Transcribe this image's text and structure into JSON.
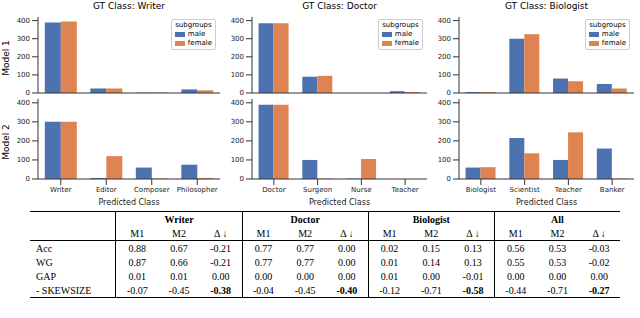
{
  "chart_data": [
    {
      "type": "bar",
      "title": "GT Class: Writer",
      "ylabel": "Model 1",
      "categories": [
        "Writer",
        "Editor",
        "Composer",
        "Philosopher"
      ],
      "series": [
        {
          "name": "male",
          "color": "#4c72b0",
          "values": [
            390,
            25,
            2,
            20
          ]
        },
        {
          "name": "female",
          "color": "#dd8452",
          "values": [
            395,
            25,
            2,
            15
          ]
        }
      ],
      "ylim": [
        0,
        420
      ],
      "yticks": [
        0,
        100,
        200,
        300,
        400
      ],
      "legend": "upper right",
      "legend_title": "subgroups",
      "tick_labels": "y"
    },
    {
      "type": "bar",
      "title": "GT Class: Doctor",
      "categories": [
        "Doctor",
        "Surgeon",
        "Nurse",
        "Teacher"
      ],
      "series": [
        {
          "name": "male",
          "color": "#4c72b0",
          "values": [
            385,
            90,
            0,
            10
          ]
        },
        {
          "name": "female",
          "color": "#dd8452",
          "values": [
            385,
            95,
            0,
            5
          ]
        }
      ],
      "ylim": [
        0,
        420
      ],
      "yticks": [
        0,
        100,
        200,
        300,
        400
      ],
      "legend": "upper right",
      "legend_title": "subgroups",
      "tick_labels": "y"
    },
    {
      "type": "bar",
      "title": "GT Class: Biologist",
      "categories": [
        "Biologist",
        "Scientist",
        "Teacher",
        "Banker"
      ],
      "series": [
        {
          "name": "male",
          "color": "#4c72b0",
          "values": [
            5,
            300,
            80,
            50
          ]
        },
        {
          "name": "female",
          "color": "#dd8452",
          "values": [
            5,
            325,
            65,
            25
          ]
        }
      ],
      "ylim": [
        0,
        420
      ],
      "yticks": [
        0,
        100,
        200,
        300,
        400
      ],
      "legend": "upper right",
      "legend_title": "subgroups",
      "tick_labels": "y"
    },
    {
      "type": "bar",
      "ylabel": "Model 2",
      "xlabel": "Predicted Class",
      "categories": [
        "Writer",
        "Editor",
        "Composer",
        "Philosopher"
      ],
      "series": [
        {
          "name": "male",
          "color": "#4c72b0",
          "values": [
            300,
            5,
            60,
            75
          ]
        },
        {
          "name": "female",
          "color": "#dd8452",
          "values": [
            300,
            120,
            3,
            5
          ]
        }
      ],
      "ylim": [
        0,
        420
      ],
      "yticks": [
        0,
        100,
        200,
        300,
        400
      ]
    },
    {
      "type": "bar",
      "xlabel": "Predicted Class",
      "categories": [
        "Doctor",
        "Surgeon",
        "Nurse",
        "Teacher"
      ],
      "series": [
        {
          "name": "male",
          "color": "#4c72b0",
          "values": [
            390,
            100,
            2,
            0
          ]
        },
        {
          "name": "female",
          "color": "#dd8452",
          "values": [
            390,
            2,
            105,
            0
          ]
        }
      ],
      "ylim": [
        0,
        420
      ],
      "yticks": [
        0,
        100,
        200,
        300,
        400
      ]
    },
    {
      "type": "bar",
      "xlabel": "Predicted Class",
      "categories": [
        "Biologist",
        "Scientist",
        "Teacher",
        "Banker"
      ],
      "series": [
        {
          "name": "male",
          "color": "#4c72b0",
          "values": [
            60,
            215,
            100,
            160
          ]
        },
        {
          "name": "female",
          "color": "#dd8452",
          "values": [
            62,
            135,
            245,
            2
          ]
        }
      ],
      "ylim": [
        0,
        420
      ],
      "yticks": [
        0,
        100,
        200,
        300,
        400
      ]
    }
  ],
  "table": {
    "groups": [
      "Writer",
      "Doctor",
      "Biologist",
      "All"
    ],
    "subheaders": [
      "M1",
      "M2",
      "Δ ↓"
    ],
    "rows": [
      {
        "label": "Acc",
        "cells": [
          "0.88",
          "0.67",
          "-0.21",
          "0.77",
          "0.77",
          "0.00",
          "0.02",
          "0.15",
          "0.13",
          "0.56",
          "0.53",
          "-0.03"
        ]
      },
      {
        "label": "WG",
        "cells": [
          "0.87",
          "0.66",
          "-0.21",
          "0.77",
          "0.77",
          "0.00",
          "0.01",
          "0.14",
          "0.13",
          "0.55",
          "0.53",
          "-0.02"
        ]
      },
      {
        "label": "GAP",
        "cells": [
          "0.01",
          "0.01",
          "0.00",
          "0.00",
          "0.00",
          "0.00",
          "0.01",
          "0.00",
          "-0.01",
          "0.00",
          "0.00",
          "0.00"
        ]
      },
      {
        "label": "- SKEWSIZE",
        "cells": [
          "-0.07",
          "-0.45",
          "-0.38",
          "-0.04",
          "-0.45",
          "-0.40",
          "-0.12",
          "-0.71",
          "-0.58",
          "-0.44",
          "-0.71",
          "-0.27"
        ]
      }
    ]
  }
}
